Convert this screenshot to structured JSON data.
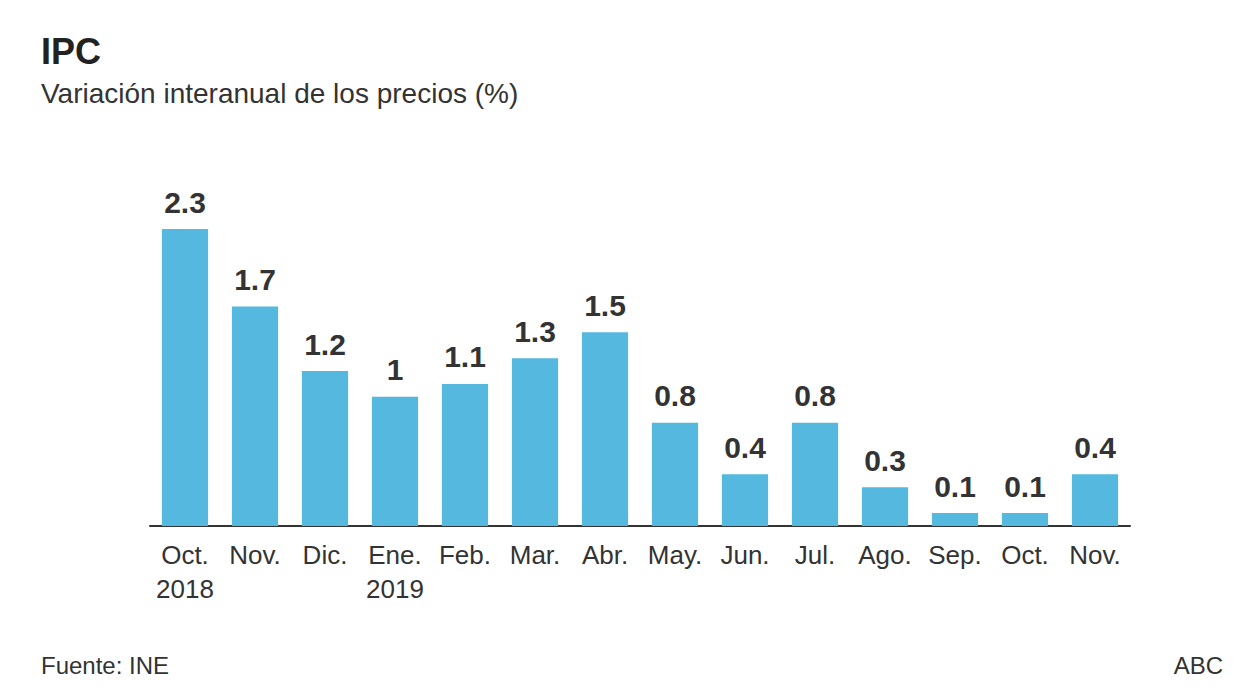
{
  "chart_data": {
    "type": "bar",
    "title": "IPC",
    "subtitle": "Variación interanual de los precios (%)",
    "categories": [
      "Oct.\n2018",
      "Nov.",
      "Dic.",
      "Ene.\n2019",
      "Feb.",
      "Mar.",
      "Abr.",
      "May.",
      "Jun.",
      "Jul.",
      "Ago.",
      "Sep.",
      "Oct.",
      "Nov."
    ],
    "values": [
      2.3,
      1.7,
      1.2,
      1,
      1.1,
      1.3,
      1.5,
      0.8,
      0.4,
      0.8,
      0.3,
      0.1,
      0.1,
      0.4
    ],
    "color": "#55b8de",
    "ylim": [
      0,
      2.3
    ],
    "grid": false,
    "data_labels": true,
    "tick_labels": "x",
    "source": "Fuente: INE",
    "publisher": "ABC"
  }
}
